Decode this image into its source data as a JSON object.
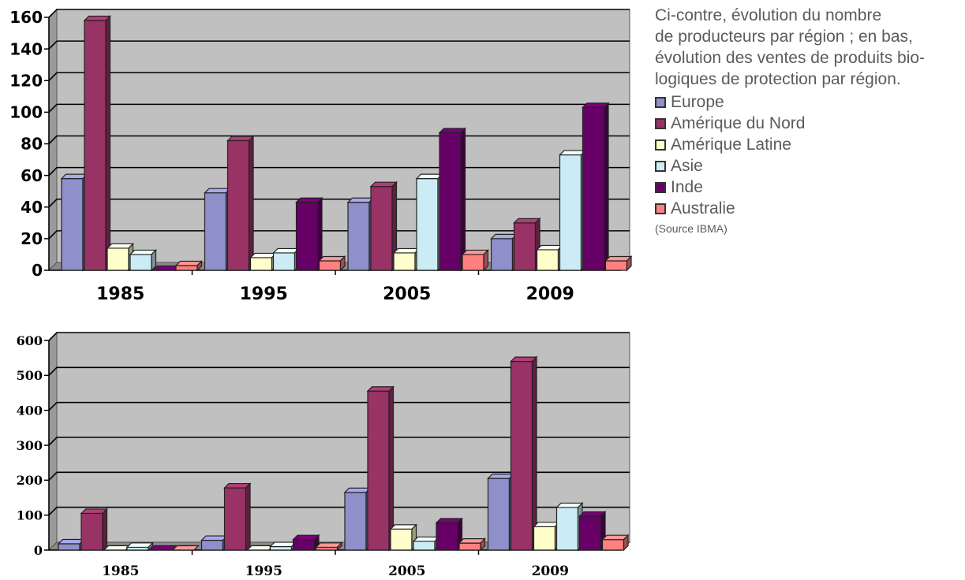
{
  "caption": {
    "lines": [
      "Ci-contre, évolution du nombre",
      "de producteurs par région ; en bas,",
      "évolution des ventes de produits bio-",
      "logiques de protection par région."
    ],
    "source": "(Source IBMA)"
  },
  "legend": [
    {
      "name": "Europe",
      "color": "#8f8fc9"
    },
    {
      "name": "Amérique du Nord",
      "color": "#993366"
    },
    {
      "name": "Amérique Latine",
      "color": "#ffffcc"
    },
    {
      "name": "Asie",
      "color": "#ccecf5"
    },
    {
      "name": "Inde",
      "color": "#660066"
    },
    {
      "name": "Australie",
      "color": "#ff8080"
    }
  ],
  "chart_data": [
    {
      "type": "bar",
      "categories": [
        "1985",
        "1995",
        "2005",
        "2009"
      ],
      "ylim": [
        0,
        160
      ],
      "yticks": [
        "0",
        "20",
        "40",
        "60",
        "80",
        "100",
        "120",
        "140",
        "160"
      ],
      "grid": true,
      "legend_position": "right",
      "series": [
        {
          "name": "Europe",
          "values": [
            58,
            49,
            43,
            20
          ]
        },
        {
          "name": "Amérique du Nord",
          "values": [
            158,
            82,
            53,
            30
          ]
        },
        {
          "name": "Amérique Latine",
          "values": [
            14,
            8,
            11,
            13
          ]
        },
        {
          "name": "Asie",
          "values": [
            10,
            11,
            58,
            73
          ]
        },
        {
          "name": "Inde",
          "values": [
            0,
            43,
            87,
            103
          ]
        },
        {
          "name": "Australie",
          "values": [
            3,
            6,
            10,
            6
          ]
        }
      ]
    },
    {
      "type": "bar",
      "categories": [
        "1985",
        "1995",
        "2005",
        "2009"
      ],
      "ylim": [
        0,
        600
      ],
      "yticks": [
        "0",
        "100",
        "200",
        "300",
        "400",
        "500",
        "600"
      ],
      "grid": true,
      "series": [
        {
          "name": "Europe",
          "values": [
            18,
            28,
            165,
            205
          ]
        },
        {
          "name": "Amérique du Nord",
          "values": [
            105,
            178,
            455,
            540
          ]
        },
        {
          "name": "Amérique Latine",
          "values": [
            0,
            0,
            60,
            67
          ]
        },
        {
          "name": "Asie",
          "values": [
            8,
            10,
            25,
            122
          ]
        },
        {
          "name": "Inde",
          "values": [
            0,
            30,
            78,
            97
          ]
        },
        {
          "name": "Australie",
          "values": [
            0,
            8,
            20,
            30
          ]
        }
      ]
    }
  ]
}
